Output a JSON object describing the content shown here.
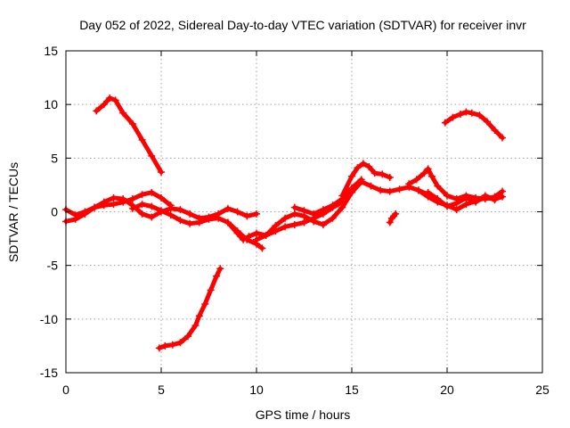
{
  "chart_data": {
    "type": "scatter",
    "title": "Day 052 of 2022, Sidereal Day-to-day VTEC variation (SDTVAR) for receiver invr",
    "xlabel": "GPS time / hours",
    "ylabel": "SDTVAR / TECUs",
    "xlim": [
      0,
      25
    ],
    "ylim": [
      -15,
      15
    ],
    "xticks": [
      0,
      5,
      10,
      15,
      20,
      25
    ],
    "yticks": [
      -15,
      -10,
      -5,
      0,
      5,
      10,
      15
    ],
    "grid": true,
    "marker": "+",
    "color": "#ff0000",
    "series": [
      {
        "name": "arc-high-morning",
        "x": [
          1.6,
          2.0,
          2.3,
          2.6,
          3.0,
          3.5,
          4.0,
          4.5,
          5.0
        ],
        "y": [
          9.4,
          10.0,
          10.6,
          10.4,
          9.2,
          8.2,
          6.7,
          5.2,
          3.7
        ]
      },
      {
        "name": "arc-low-morning",
        "x": [
          4.9,
          5.2,
          5.6,
          6.0,
          6.4,
          6.8,
          7.0,
          7.3,
          7.6,
          7.9,
          8.1
        ],
        "y": [
          -12.7,
          -12.5,
          -12.4,
          -12.2,
          -11.6,
          -10.6,
          -9.7,
          -8.6,
          -7.3,
          -6.0,
          -5.3
        ]
      },
      {
        "name": "arc-a",
        "x": [
          0.0,
          0.5,
          1.0,
          1.5,
          2.0,
          2.5,
          3.0,
          3.5,
          4.0,
          4.5,
          5.0,
          5.5,
          6.0,
          6.5,
          7.0,
          7.5,
          8.0,
          8.5,
          9.0,
          9.5,
          10.0
        ],
        "y": [
          -0.9,
          -0.7,
          -0.2,
          0.4,
          0.9,
          1.3,
          1.2,
          0.6,
          -0.2,
          -0.5,
          0.0,
          0.3,
          0.2,
          -0.2,
          -0.6,
          -0.5,
          -0.2,
          0.3,
          0.0,
          -0.4,
          -0.2
        ]
      },
      {
        "name": "arc-b",
        "x": [
          0.0,
          0.5,
          1.0,
          1.5,
          2.0,
          2.5,
          3.0,
          3.5,
          4.0,
          4.5,
          5.0,
          5.5
        ],
        "y": [
          0.2,
          -0.3,
          0.0,
          0.4,
          0.6,
          0.7,
          0.9,
          1.2,
          1.6,
          1.8,
          1.3,
          0.6
        ]
      },
      {
        "name": "arc-c",
        "x": [
          3.5,
          4.0,
          4.5,
          5.0,
          5.5,
          6.0,
          6.5,
          7.0,
          7.5,
          8.0,
          8.5,
          9.0,
          9.5,
          10.0,
          10.3
        ],
        "y": [
          0.3,
          0.7,
          0.5,
          0.1,
          -0.3,
          -0.8,
          -1.1,
          -1.0,
          -0.7,
          -0.6,
          -1.0,
          -1.8,
          -2.6,
          -3.0,
          -3.4
        ]
      },
      {
        "name": "arc-d",
        "x": [
          8.5,
          9.0,
          9.3,
          9.6,
          10.0,
          10.5,
          11.0,
          11.5,
          12.0,
          12.5,
          13.0,
          13.5,
          14.0,
          14.5
        ],
        "y": [
          -1.0,
          -2.0,
          -2.6,
          -2.3,
          -2.0,
          -2.2,
          -1.8,
          -1.4,
          -1.2,
          -1.0,
          -0.6,
          -0.2,
          0.4,
          0.9
        ]
      },
      {
        "name": "arc-e",
        "x": [
          10.0,
          10.5,
          11.0,
          11.5,
          12.0,
          12.5,
          13.0,
          13.5,
          14.0,
          14.5,
          15.0,
          15.5,
          16.0,
          16.5,
          17.0,
          17.5,
          18.0,
          18.5,
          19.0
        ],
        "y": [
          -2.6,
          -2.2,
          -1.3,
          -0.6,
          -0.2,
          -0.4,
          -0.9,
          -1.2,
          -0.6,
          0.4,
          1.8,
          2.8,
          2.4,
          2.0,
          1.9,
          2.1,
          2.3,
          2.0,
          1.6
        ]
      },
      {
        "name": "arc-f",
        "x": [
          14.5,
          15.0,
          15.3,
          15.6,
          15.9,
          16.2,
          16.6,
          17.0
        ],
        "y": [
          1.5,
          3.3,
          4.1,
          4.5,
          4.2,
          3.6,
          3.5,
          3.2
        ]
      },
      {
        "name": "arc-g",
        "x": [
          12.0,
          12.5,
          13.0,
          13.5,
          14.0,
          14.5,
          15.0,
          15.5
        ],
        "y": [
          0.4,
          0.1,
          -0.2,
          0.2,
          0.6,
          1.2,
          2.2,
          3.0
        ]
      },
      {
        "name": "arc-h",
        "x": [
          18.0,
          18.4,
          18.8,
          19.0,
          19.2,
          19.5,
          20.0,
          20.5,
          21.0,
          21.5,
          22.0,
          22.5,
          22.9
        ],
        "y": [
          2.6,
          3.0,
          3.6,
          4.0,
          3.3,
          2.4,
          1.5,
          1.2,
          1.5,
          1.3,
          1.2,
          1.4,
          1.9
        ]
      },
      {
        "name": "arc-i",
        "x": [
          18.5,
          19.0,
          19.5,
          20.0,
          20.5,
          21.0,
          21.5,
          22.0,
          22.5,
          22.9
        ],
        "y": [
          2.0,
          1.4,
          0.9,
          0.6,
          0.2,
          0.7,
          1.0,
          1.3,
          1.2,
          1.4
        ]
      },
      {
        "name": "arc-j",
        "x": [
          19.0,
          19.5,
          20.0,
          20.5,
          21.0,
          21.5,
          22.0,
          22.5
        ],
        "y": [
          1.8,
          1.2,
          0.5,
          0.8,
          1.3,
          0.9,
          1.5,
          1.1
        ]
      },
      {
        "name": "arc-high-evening",
        "x": [
          19.9,
          20.3,
          20.7,
          21.0,
          21.3,
          21.7,
          22.1,
          22.5,
          22.9
        ],
        "y": [
          8.3,
          8.8,
          9.1,
          9.3,
          9.2,
          9.0,
          8.4,
          7.6,
          6.9
        ]
      },
      {
        "name": "arc-short",
        "x": [
          17.0,
          17.1,
          17.2,
          17.3
        ],
        "y": [
          -1.0,
          -0.6,
          -0.4,
          -0.2
        ]
      }
    ]
  }
}
